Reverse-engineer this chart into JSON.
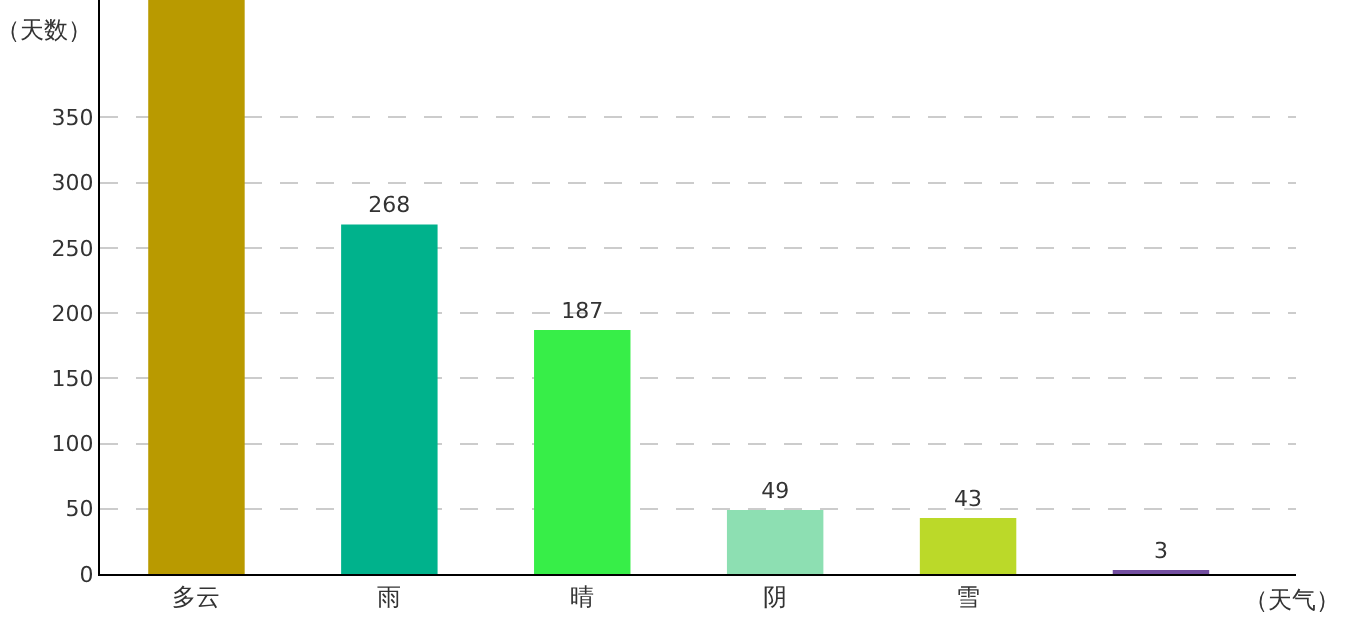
{
  "chart_data": {
    "type": "bar",
    "xlabel": "（天气）",
    "ylabel": "（天数）",
    "categories": [
      "多云",
      "雨",
      "晴",
      "阴",
      "雪",
      null
    ],
    "values": [
      440,
      268,
      187,
      49,
      43,
      3
    ],
    "colors": [
      "#b99a00",
      "#00b28c",
      "#37ee48",
      "#8ddfb2",
      "#bbd929",
      "#734ea0"
    ],
    "value_labels": [
      null,
      "268",
      "187",
      "49",
      "43",
      "3"
    ],
    "ylim": [
      0,
      440
    ],
    "yticks": [
      0,
      50,
      100,
      150,
      200,
      250,
      300,
      350
    ],
    "grid": "y"
  }
}
